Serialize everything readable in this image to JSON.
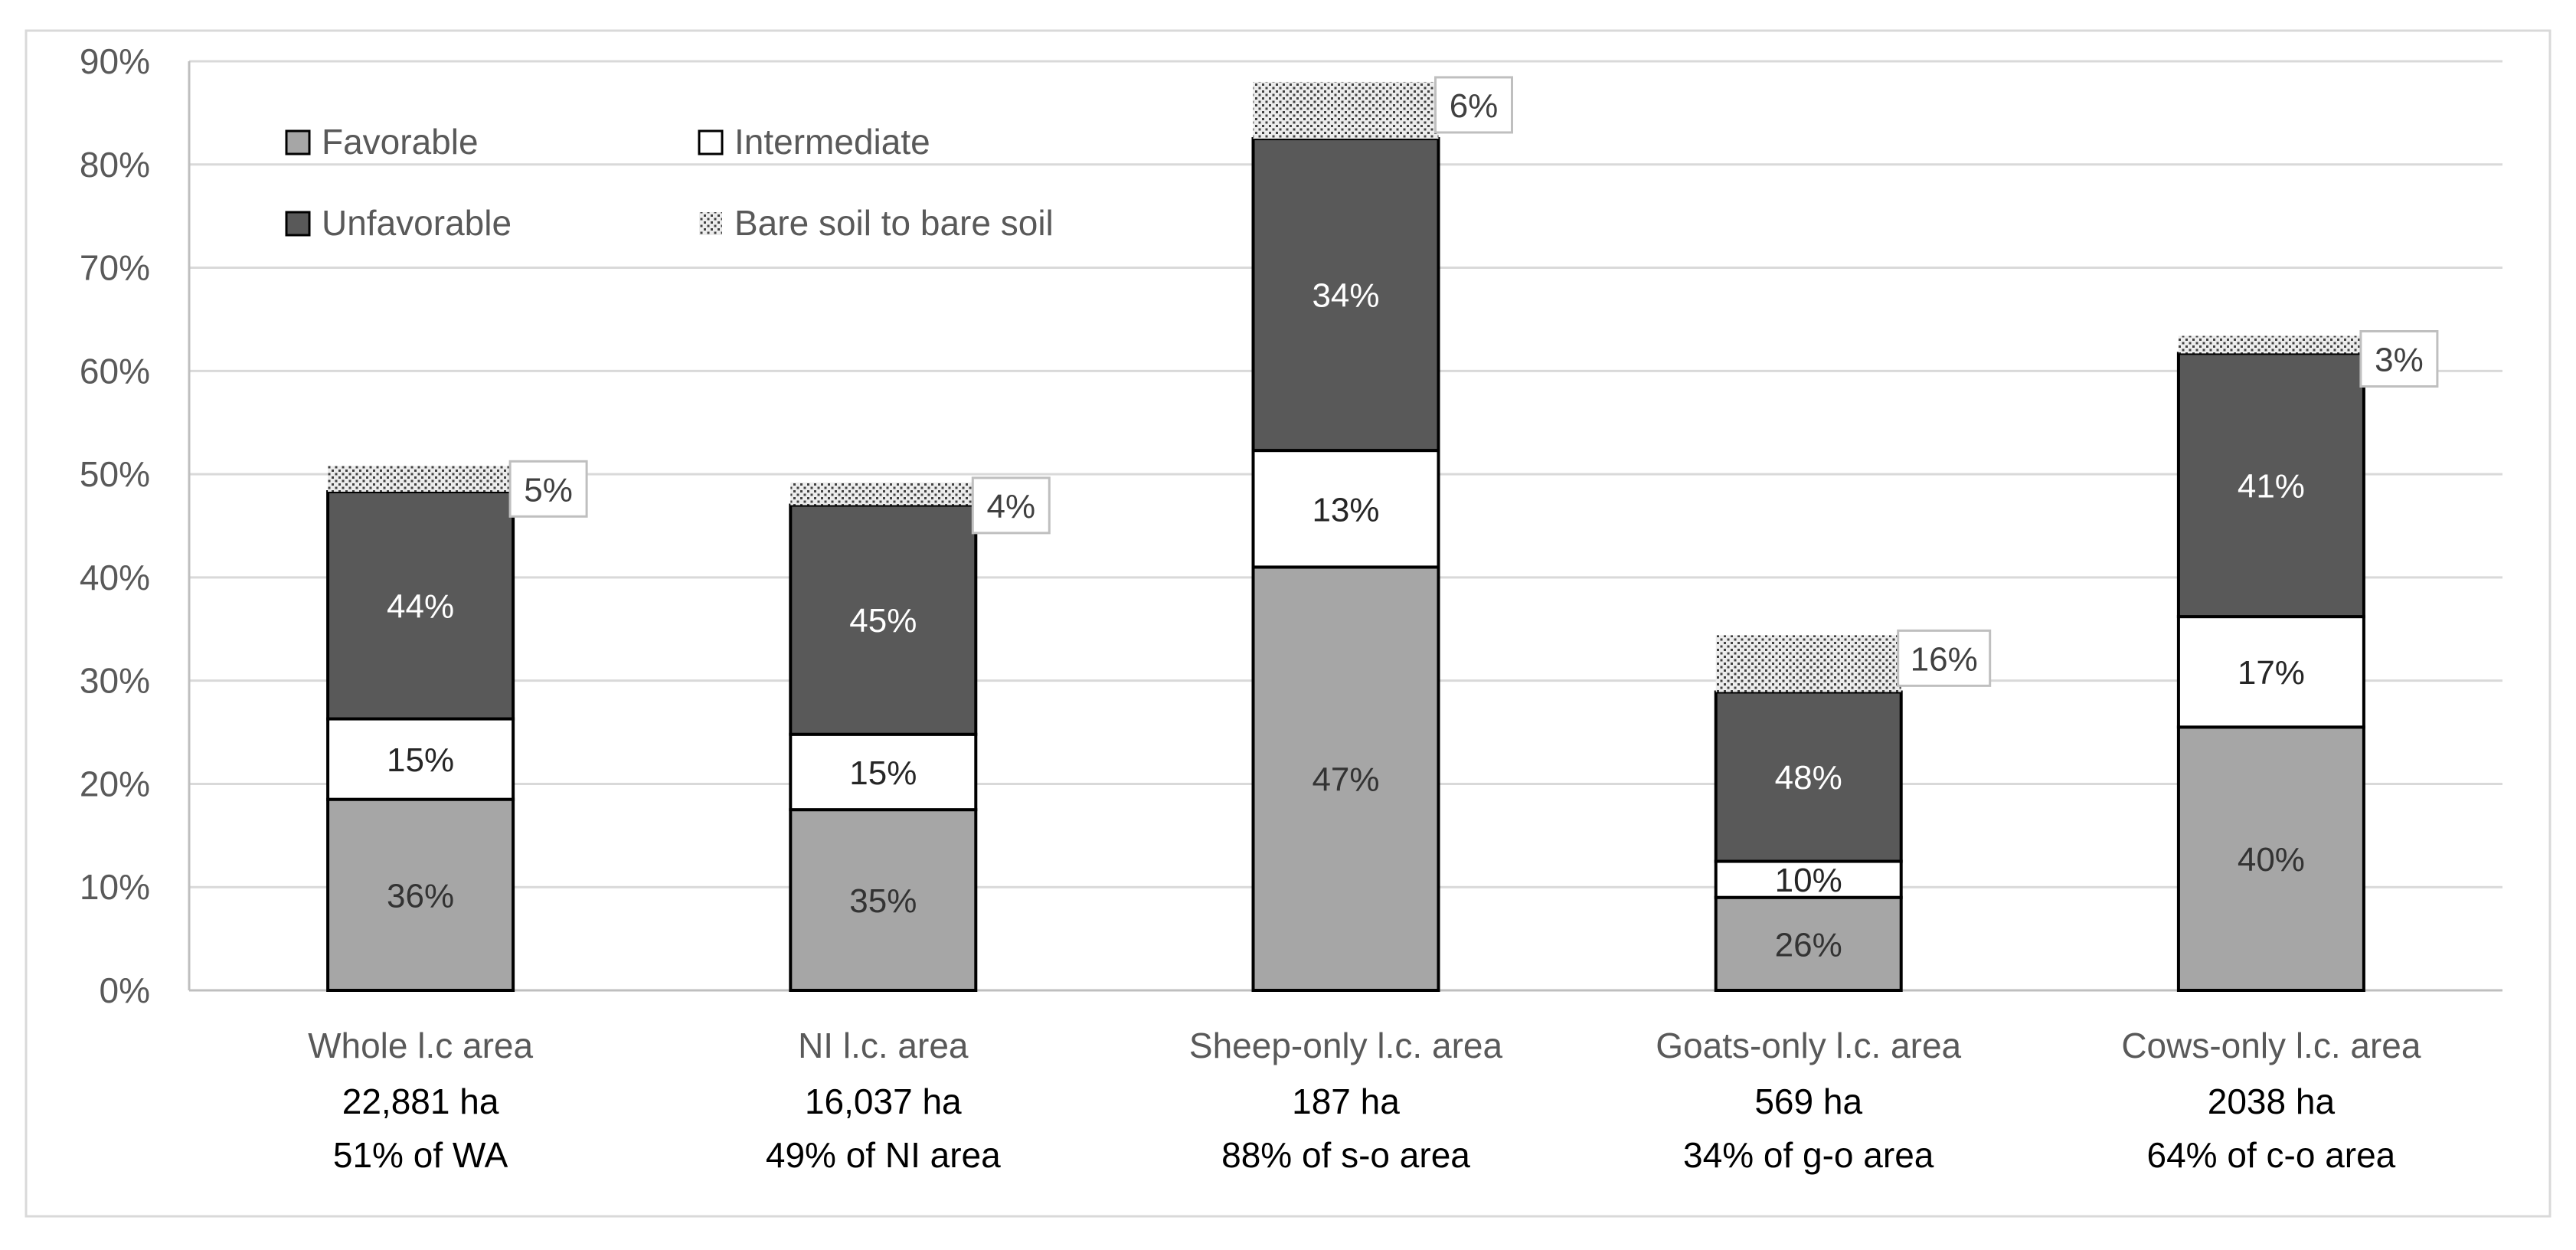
{
  "chart_data": {
    "type": "bar",
    "stacked": true,
    "title": "",
    "xlabel": "",
    "ylabel": "",
    "ylim": [
      0,
      0.9
    ],
    "yticks": [
      0,
      0.1,
      0.2,
      0.3,
      0.4,
      0.5,
      0.6,
      0.7,
      0.8,
      0.9
    ],
    "ytick_labels": [
      "0%",
      "10%",
      "20%",
      "30%",
      "40%",
      "50%",
      "60%",
      "70%",
      "80%",
      "90%"
    ],
    "grid": true,
    "legend_position": "top-left",
    "categories": [
      "Whole l.c area",
      "NI l.c. area",
      "Sheep-only l.c. area",
      "Goats-only l.c. area",
      "Cows-only l.c. area"
    ],
    "category_area": [
      "22,881 ha",
      "16,037 ha",
      "187 ha",
      "569 ha",
      "2038 ha"
    ],
    "category_share": [
      "51% of WA",
      "49% of NI area",
      "88% of s-o area",
      "34% of g-o area",
      "64% of c-o area"
    ],
    "series": [
      {
        "name": "Favorable",
        "color": "#a6a6a6",
        "pattern": "solid",
        "values": [
          0.185,
          0.175,
          0.41,
          0.09,
          0.255
        ],
        "labels": [
          "36%",
          "35%",
          "47%",
          "26%",
          "40%"
        ],
        "label_color": "#333333"
      },
      {
        "name": "Intermediate",
        "color": "#ffffff",
        "pattern": "solid",
        "values": [
          0.078,
          0.073,
          0.113,
          0.035,
          0.107
        ],
        "labels": [
          "15%",
          "15%",
          "13%",
          "10%",
          "17%"
        ],
        "label_color": "#262626"
      },
      {
        "name": "Unfavorable",
        "color": "#595959",
        "pattern": "solid",
        "values": [
          0.22,
          0.222,
          0.302,
          0.164,
          0.255
        ],
        "labels": [
          "44%",
          "45%",
          "34%",
          "48%",
          "41%"
        ],
        "label_color": "#ffffff"
      },
      {
        "name": "Bare soil to bare soil",
        "color": "#d9d9d9",
        "pattern": "dotted",
        "values": [
          0.025,
          0.022,
          0.055,
          0.055,
          0.017
        ],
        "labels": [
          "5%",
          "4%",
          "6%",
          "16%",
          "3%"
        ],
        "label_color": "#404040"
      }
    ]
  },
  "colors": {
    "grid": "#d9d9d9",
    "axis": "#bfbfbf",
    "text": "#595959",
    "text_dark": "#000000",
    "bar_outline": "#000000",
    "dot": "#404040"
  }
}
